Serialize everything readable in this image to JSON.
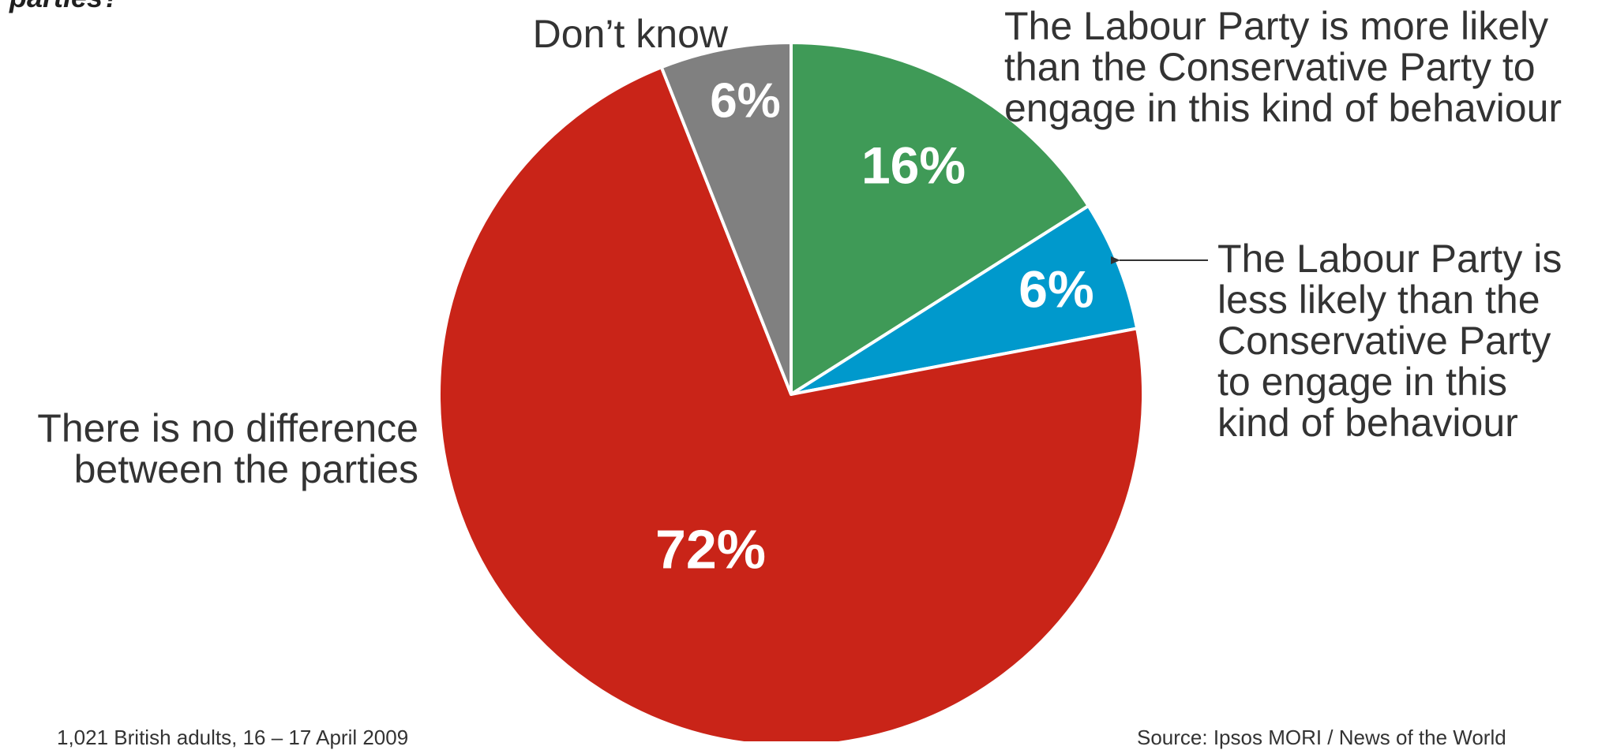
{
  "chart_data": {
    "type": "pie",
    "title_fragment": "parties?",
    "start_angle_deg": 0,
    "direction": "clockwise",
    "slices": [
      {
        "label_lines": [
          "The Labour Party is more likely",
          "than the Conservative Party to",
          "engage in this kind of behaviour"
        ],
        "value": 16,
        "value_label": "16%",
        "color": "#3f9a57"
      },
      {
        "label_lines": [
          "The Labour Party is",
          "less likely than the",
          "Conservative Party",
          "to engage in this",
          "kind of behaviour"
        ],
        "value": 6,
        "value_label": "6%",
        "color": "#0099cc"
      },
      {
        "label_lines": [
          "There is no difference",
          "between the parties"
        ],
        "value": 72,
        "value_label": "72%",
        "color": "#c92418"
      },
      {
        "label_lines": [
          "Don’t know"
        ],
        "value": 6,
        "value_label": "6%",
        "color": "#808080"
      }
    ],
    "footnote_left": "1,021 British adults, 16 – 17 April 2009",
    "footnote_right": "Source: Ipsos MORI / News of the World"
  }
}
